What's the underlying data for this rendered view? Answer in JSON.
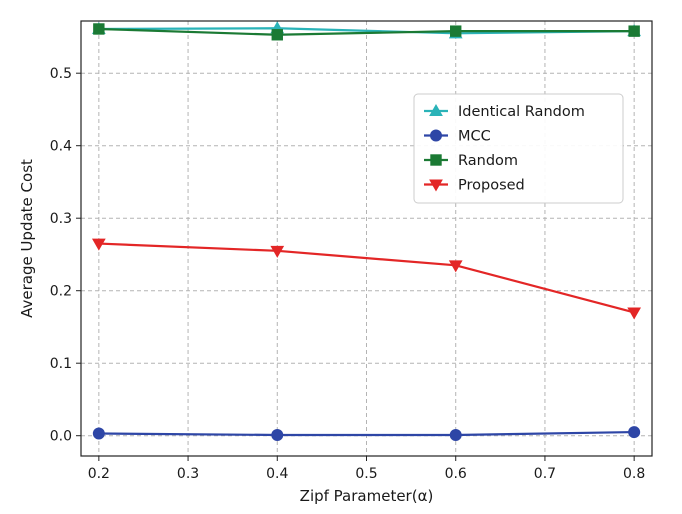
{
  "chart_data": {
    "type": "line",
    "title": "",
    "xlabel": "Zipf Parameter(α)",
    "ylabel": "Average Update Cost",
    "xlim": [
      0.18,
      0.82
    ],
    "ylim": [
      -0.028,
      0.572
    ],
    "xticks": [
      "0.2",
      "0.3",
      "0.4",
      "0.5",
      "0.6",
      "0.7",
      "0.8"
    ],
    "yticks": [
      "0.0",
      "0.1",
      "0.2",
      "0.3",
      "0.4",
      "0.5"
    ],
    "grid": true,
    "legend_position": "upper-right",
    "x": [
      0.2,
      0.4,
      0.6,
      0.8
    ],
    "series": [
      {
        "name": "Identical Random",
        "color": "#2ab3b8",
        "marker": "triangle-up",
        "values": [
          0.561,
          0.562,
          0.555,
          0.558
        ]
      },
      {
        "name": "MCC",
        "color": "#2e46a6",
        "marker": "circle",
        "values": [
          0.003,
          0.001,
          0.001,
          0.005
        ]
      },
      {
        "name": "Random",
        "color": "#1b7a34",
        "marker": "square",
        "values": [
          0.561,
          0.553,
          0.558,
          0.558
        ]
      },
      {
        "name": "Proposed",
        "color": "#e32626",
        "marker": "triangle-down",
        "values": [
          0.265,
          0.255,
          0.235,
          0.17
        ]
      }
    ]
  }
}
